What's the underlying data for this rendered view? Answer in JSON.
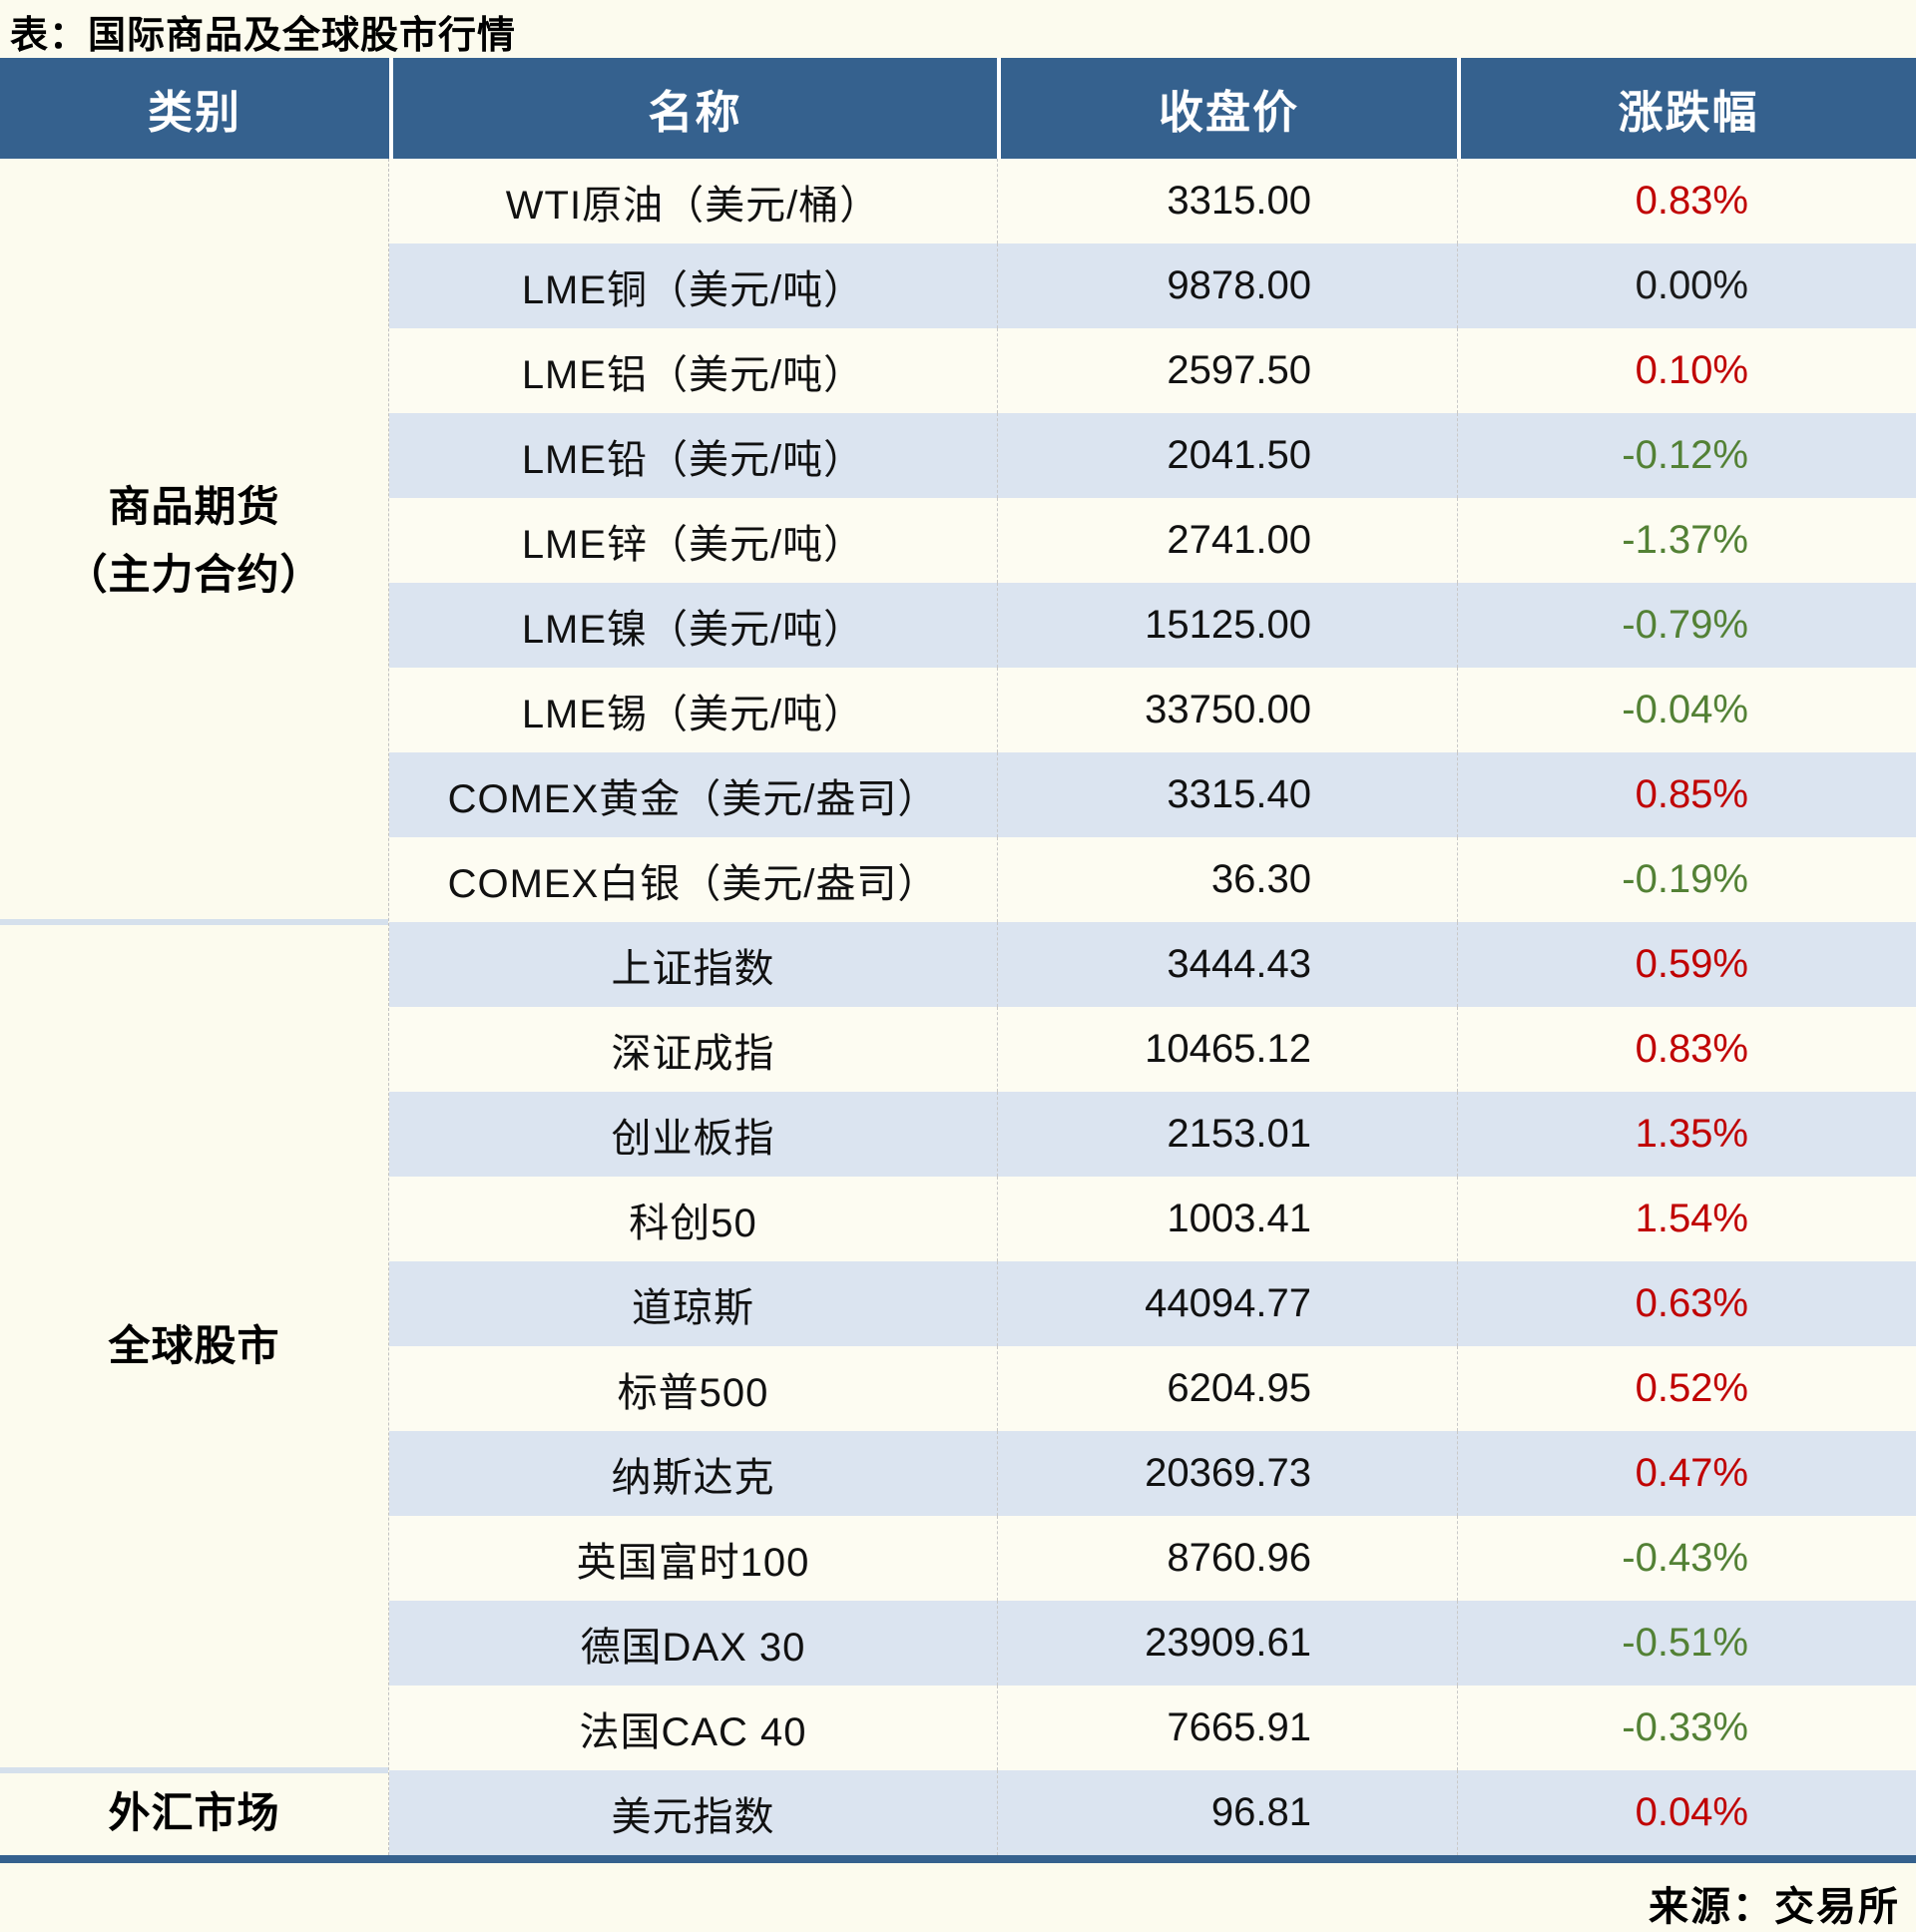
{
  "title": "表：国际商品及全球股市行情",
  "source": "来源：交易所",
  "colors": {
    "header_bg": "#35618E",
    "row_stripe_blue": "#DBE4F0",
    "row_stripe_white": "#FDFCF2",
    "page_bg": "#FCFBEE",
    "up_red": "#C00000",
    "down_green": "#538135",
    "flat_black": "#1A1A1A",
    "section_divider": "#D5E0EC",
    "bottom_border": "#35618E"
  },
  "chart_data": {
    "type": "table",
    "title": "表：国际商品及全球股市行情",
    "headers": [
      "类别",
      "名称",
      "收盘价",
      "涨跌幅"
    ],
    "sections": [
      {
        "category_lines": [
          "商品期货",
          "（主力合约）"
        ],
        "rows": [
          {
            "name": "WTI原油（美元/桶）",
            "close": "3315.00",
            "change": "0.83%",
            "dir": "up"
          },
          {
            "name": "LME铜（美元/吨）",
            "close": "9878.00",
            "change": "0.00%",
            "dir": "flat"
          },
          {
            "name": "LME铝（美元/吨）",
            "close": "2597.50",
            "change": "0.10%",
            "dir": "up"
          },
          {
            "name": "LME铅（美元/吨）",
            "close": "2041.50",
            "change": "-0.12%",
            "dir": "down"
          },
          {
            "name": "LME锌（美元/吨）",
            "close": "2741.00",
            "change": "-1.37%",
            "dir": "down"
          },
          {
            "name": "LME镍（美元/吨）",
            "close": "15125.00",
            "change": "-0.79%",
            "dir": "down"
          },
          {
            "name": "LME锡（美元/吨）",
            "close": "33750.00",
            "change": "-0.04%",
            "dir": "down"
          },
          {
            "name": "COMEX黄金（美元/盎司）",
            "close": "3315.40",
            "change": "0.85%",
            "dir": "up"
          },
          {
            "name": "COMEX白银（美元/盎司）",
            "close": "36.30",
            "change": "-0.19%",
            "dir": "down"
          }
        ]
      },
      {
        "category_lines": [
          "全球股市"
        ],
        "rows": [
          {
            "name": "上证指数",
            "close": "3444.43",
            "change": "0.59%",
            "dir": "up"
          },
          {
            "name": "深证成指",
            "close": "10465.12",
            "change": "0.83%",
            "dir": "up"
          },
          {
            "name": "创业板指",
            "close": "2153.01",
            "change": "1.35%",
            "dir": "up"
          },
          {
            "name": "科创50",
            "close": "1003.41",
            "change": "1.54%",
            "dir": "up"
          },
          {
            "name": "道琼斯",
            "close": "44094.77",
            "change": "0.63%",
            "dir": "up"
          },
          {
            "name": "标普500",
            "close": "6204.95",
            "change": "0.52%",
            "dir": "up"
          },
          {
            "name": "纳斯达克",
            "close": "20369.73",
            "change": "0.47%",
            "dir": "up"
          },
          {
            "name": "英国富时100",
            "close": "8760.96",
            "change": "-0.43%",
            "dir": "down"
          },
          {
            "name": "德国DAX 30",
            "close": "23909.61",
            "change": "-0.51%",
            "dir": "down"
          },
          {
            "name": "法国CAC 40",
            "close": "7665.91",
            "change": "-0.33%",
            "dir": "down"
          }
        ]
      },
      {
        "category_lines": [
          "外汇市场"
        ],
        "rows": [
          {
            "name": "美元指数",
            "close": "96.81",
            "change": "0.04%",
            "dir": "up"
          }
        ]
      }
    ]
  }
}
